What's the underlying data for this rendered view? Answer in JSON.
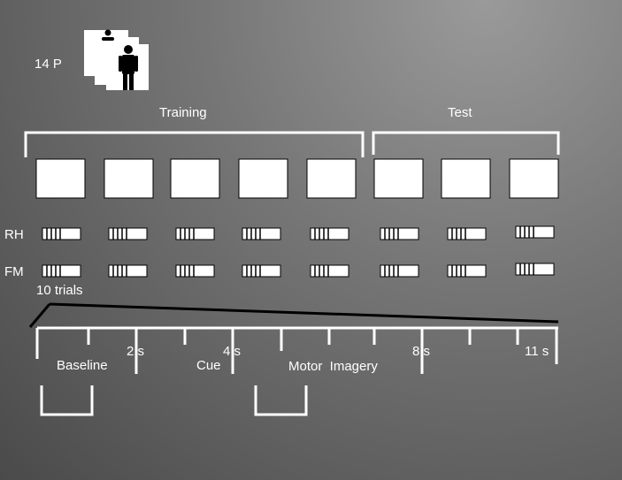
{
  "participants": {
    "label": "14 P",
    "icon": "person-icon"
  },
  "phases": [
    {
      "label": "Training"
    },
    {
      "label": "Test"
    }
  ],
  "conditions": [
    {
      "label": "RH"
    },
    {
      "label": "FM"
    }
  ],
  "trials_label": "10 trials",
  "timeline": {
    "ticks": [
      "2 s",
      "4 s",
      "8 s",
      "11 s"
    ],
    "stages": [
      {
        "label": "Baseline"
      },
      {
        "label": "Cue"
      },
      {
        "label": "Motor  Imagery"
      }
    ]
  },
  "colors": {
    "background": "#6e6e6e",
    "foreground": "#ffffff",
    "stroke": "#000000"
  }
}
